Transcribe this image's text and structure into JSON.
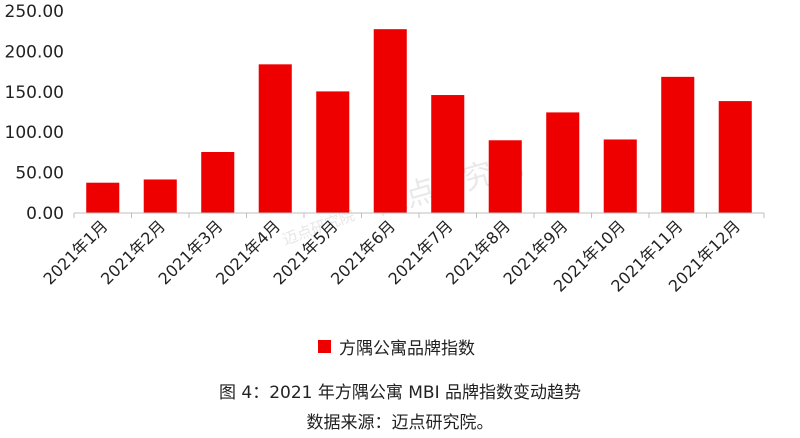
{
  "colors": {
    "bar": "#ee0000",
    "axis": "#bfbfbf",
    "watermark": "#cfcfcf"
  },
  "chart_data": {
    "type": "bar",
    "categories": [
      "2021年1月",
      "2021年2月",
      "2021年3月",
      "2021年4月",
      "2021年5月",
      "2021年6月",
      "2021年7月",
      "2021年8月",
      "2021年9月",
      "2021年10月",
      "2021年11月",
      "2021年12月"
    ],
    "series": [
      {
        "name": "方隅公寓品牌指数",
        "values": [
          37.5,
          41.5,
          75.5,
          184.0,
          150.5,
          227.5,
          146.0,
          90.0,
          124.5,
          91.0,
          168.5,
          138.5
        ]
      }
    ],
    "yticks": [
      "0.00",
      "50.00",
      "100.00",
      "150.00",
      "200.00",
      "250.00"
    ],
    "ylim": [
      0,
      250
    ],
    "grid": false,
    "legend_position": "bottom",
    "watermarks": [
      "迈点研究院",
      "迈点研究院"
    ]
  },
  "caption": {
    "line1": "图 4：2021 年方隅公寓 MBI 品牌指数变动趋势",
    "line2": "数据来源：迈点研究院。"
  }
}
